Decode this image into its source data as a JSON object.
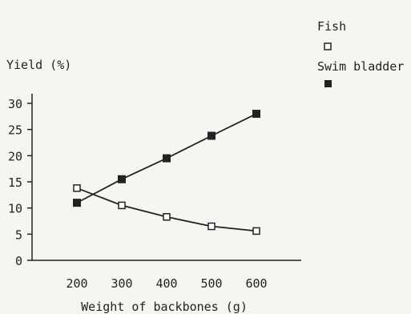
{
  "chart_data": {
    "type": "line",
    "title": "",
    "xlabel": "Weight of backbones (g)",
    "ylabel": "Yield (%)",
    "x": [
      200,
      300,
      400,
      500,
      600
    ],
    "x_ticks": [
      200,
      300,
      400,
      500,
      600
    ],
    "y_ticks": [
      0,
      5,
      10,
      15,
      20,
      25,
      30
    ],
    "xlim": [
      100,
      700
    ],
    "ylim": [
      0,
      30
    ],
    "grid": false,
    "legend_position": "top-right",
    "series": [
      {
        "name": "Fish",
        "marker": "open-square",
        "color": "#222222",
        "values": [
          13.8,
          10.5,
          8.3,
          6.5,
          5.6
        ]
      },
      {
        "name": "Swim bladder",
        "marker": "filled-square",
        "color": "#222222",
        "values": [
          11.0,
          15.5,
          19.5,
          23.8,
          28.0
        ]
      }
    ]
  }
}
